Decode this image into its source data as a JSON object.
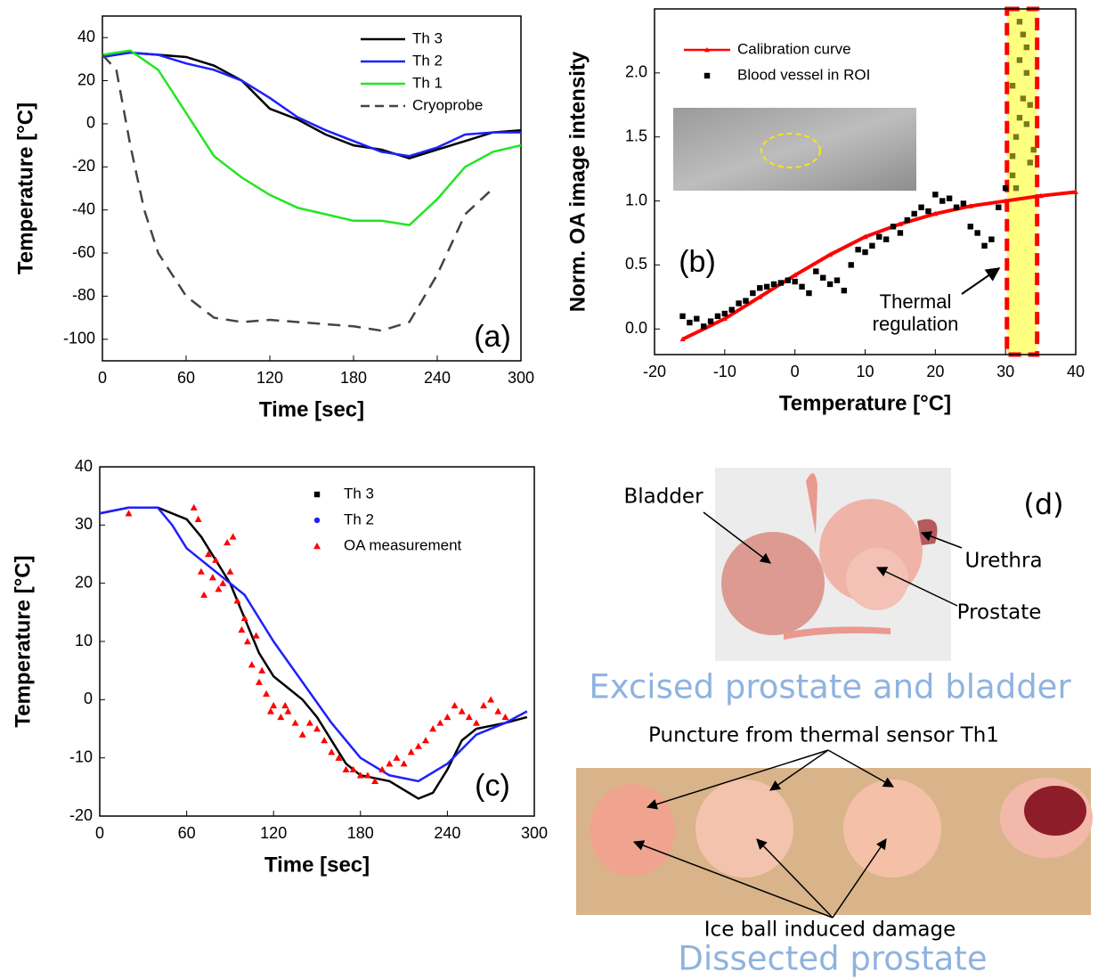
{
  "chart_data": [
    {
      "type": "line",
      "panel_label": "(a)",
      "xlabel": "Time [sec]",
      "ylabel": "Temperature [°C]",
      "xlim": [
        0,
        300
      ],
      "ylim": [
        -110,
        50
      ],
      "xticks": [
        0,
        60,
        120,
        180,
        240,
        300
      ],
      "yticks": [
        -100,
        -80,
        -60,
        -40,
        -20,
        0,
        20,
        40
      ],
      "legend": "upper right",
      "series": [
        {
          "name": "Th 3",
          "color": "#000000",
          "mode": "line",
          "x": [
            0,
            20,
            40,
            60,
            80,
            100,
            120,
            140,
            160,
            180,
            200,
            220,
            240,
            260,
            280,
            300
          ],
          "values": [
            32,
            33,
            32,
            31,
            27,
            20,
            7,
            2,
            -5,
            -10,
            -12,
            -16,
            -12,
            -8,
            -4,
            -3
          ]
        },
        {
          "name": "Th 2",
          "color": "#1f1fff",
          "mode": "line",
          "x": [
            0,
            20,
            40,
            60,
            80,
            100,
            120,
            140,
            160,
            180,
            200,
            220,
            240,
            260,
            280,
            300
          ],
          "values": [
            31,
            33,
            32,
            28,
            25,
            20,
            12,
            3,
            -3,
            -8,
            -13,
            -15,
            -11,
            -5,
            -4,
            -4
          ]
        },
        {
          "name": "Th 1",
          "color": "#22e622",
          "mode": "line",
          "x": [
            0,
            20,
            40,
            60,
            80,
            100,
            120,
            140,
            160,
            180,
            200,
            220,
            240,
            260,
            280,
            300
          ],
          "values": [
            32,
            34,
            25,
            5,
            -15,
            -25,
            -33,
            -39,
            -42,
            -45,
            -45,
            -47,
            -35,
            -20,
            -13,
            -10
          ]
        },
        {
          "name": "Cryoprobe",
          "color": "#444444",
          "mode": "line",
          "dash": true,
          "x": [
            0,
            10,
            20,
            30,
            40,
            60,
            80,
            100,
            120,
            140,
            160,
            180,
            200,
            220,
            240,
            260,
            280
          ],
          "values": [
            32,
            25,
            -10,
            -40,
            -60,
            -80,
            -90,
            -92,
            -91,
            -92,
            -93,
            -94,
            -96,
            -92,
            -70,
            -42,
            -30
          ]
        }
      ]
    },
    {
      "type": "scatter",
      "panel_label": "(b)",
      "xlabel": "Temperature [°C]",
      "ylabel": "Norm. OA image intensity",
      "annotation": [
        "Thermal",
        "regulation"
      ],
      "xlim": [
        -20,
        40
      ],
      "ylim": [
        -0.2,
        2.5
      ],
      "xticks": [
        -20,
        -10,
        0,
        10,
        20,
        30,
        40
      ],
      "yticks": [
        {
          "value": 0,
          "label": "0.0"
        },
        0.5,
        {
          "value": 1,
          "label": "1.0"
        },
        1.5,
        {
          "value": 2,
          "label": "2.0"
        }
      ],
      "legend": "upper left",
      "highlight_xrange": [
        30.2,
        34.5
      ],
      "highlight_color": "#ffff80",
      "highlight_border": "#ff0000",
      "highlight_point_color": "#7a7a1a",
      "series": [
        {
          "name": "Calibration curve",
          "color": "#ff0000",
          "mode": "line",
          "marker": "triangle",
          "x": [
            -16,
            -10,
            -5,
            0,
            5,
            10,
            15,
            20,
            25,
            30,
            35,
            40
          ],
          "values": [
            -0.08,
            0.08,
            0.25,
            0.42,
            0.58,
            0.72,
            0.82,
            0.9,
            0.96,
            1.0,
            1.04,
            1.07
          ]
        },
        {
          "name": "Blood vessel in ROI",
          "color": "#000000",
          "mode": "scatter",
          "marker": "square",
          "x": [
            -16,
            -15,
            -14,
            -13,
            -12,
            -11,
            -10,
            -9,
            -8,
            -7,
            -6,
            -5,
            -4,
            -3,
            -2,
            -1,
            0,
            1,
            2,
            3,
            4,
            5,
            6,
            7,
            8,
            9,
            10,
            11,
            12,
            13,
            14,
            15,
            16,
            17,
            18,
            19,
            20,
            21,
            22,
            23,
            24,
            25,
            26,
            27,
            28,
            29,
            30,
            31,
            31.5,
            32,
            32.5,
            33,
            33.5,
            31,
            32,
            33,
            34,
            31.5,
            32.5,
            33.5,
            31,
            32,
            33
          ],
          "values": [
            0.1,
            0.05,
            0.08,
            0.02,
            0.06,
            0.1,
            0.12,
            0.15,
            0.2,
            0.22,
            0.28,
            0.32,
            0.33,
            0.35,
            0.36,
            0.38,
            0.37,
            0.33,
            0.28,
            0.45,
            0.4,
            0.35,
            0.38,
            0.3,
            0.5,
            0.62,
            0.6,
            0.65,
            0.72,
            0.7,
            0.8,
            0.75,
            0.85,
            0.9,
            0.95,
            0.92,
            1.05,
            1.0,
            1.02,
            0.95,
            0.98,
            0.8,
            0.75,
            0.65,
            0.7,
            0.95,
            1.1,
            1.2,
            1.5,
            2.4,
            1.8,
            2.2,
            1.3,
            1.9,
            2.1,
            1.6,
            1.4,
            1.1,
            2.3,
            1.75,
            1.35,
            1.65,
            2.0
          ]
        }
      ]
    },
    {
      "type": "line",
      "panel_label": "(c)",
      "xlabel": "Time [sec]",
      "ylabel": "Temperature [°C]",
      "xlim": [
        0,
        300
      ],
      "ylim": [
        -20,
        40
      ],
      "xticks": [
        0,
        60,
        120,
        180,
        240,
        300
      ],
      "yticks": [
        -20,
        -10,
        0,
        10,
        20,
        30,
        40
      ],
      "legend": "upper right",
      "series": [
        {
          "name": "Th 3",
          "color": "#000000",
          "mode": "line",
          "marker": "square",
          "x": [
            0,
            20,
            40,
            60,
            70,
            80,
            90,
            100,
            110,
            120,
            130,
            140,
            150,
            160,
            170,
            180,
            200,
            220,
            230,
            240,
            250,
            260,
            280,
            295
          ],
          "values": [
            32,
            33,
            33,
            31,
            28,
            24,
            20,
            14,
            8,
            4,
            2,
            0,
            -3,
            -7,
            -11,
            -13,
            -14,
            -17,
            -16,
            -12,
            -7,
            -5,
            -4,
            -3
          ]
        },
        {
          "name": "Th 2",
          "color": "#1f1fff",
          "mode": "line",
          "marker": "circle",
          "x": [
            0,
            20,
            40,
            50,
            60,
            80,
            100,
            120,
            140,
            160,
            180,
            200,
            220,
            240,
            260,
            280,
            295
          ],
          "values": [
            32,
            33,
            33,
            30,
            26,
            22,
            18,
            10,
            3,
            -4,
            -10,
            -13,
            -14,
            -11,
            -6,
            -4,
            -2
          ]
        },
        {
          "name": "OA measurement",
          "color": "#ff0000",
          "mode": "scatter",
          "marker": "triangle",
          "x": [
            20,
            65,
            68,
            70,
            72,
            75,
            78,
            80,
            82,
            85,
            88,
            90,
            92,
            95,
            98,
            100,
            102,
            105,
            108,
            110,
            112,
            115,
            118,
            120,
            125,
            128,
            130,
            135,
            140,
            145,
            150,
            155,
            160,
            165,
            170,
            175,
            180,
            185,
            190,
            195,
            200,
            205,
            210,
            215,
            220,
            225,
            230,
            235,
            240,
            245,
            250,
            255,
            260,
            265,
            270,
            275,
            280
          ],
          "values": [
            32,
            33,
            31,
            22,
            18,
            25,
            21,
            24,
            19,
            20,
            27,
            22,
            28,
            17,
            12,
            14,
            10,
            6,
            11,
            3,
            5,
            1,
            -2,
            -1,
            -3,
            -1,
            -2,
            -4,
            -6,
            -4,
            -5,
            -7,
            -9,
            -10,
            -12,
            -12,
            -13,
            -13,
            -14,
            -12,
            -11,
            -10,
            -11,
            -9,
            -8,
            -7,
            -5,
            -4,
            -3,
            -1,
            -2,
            -3,
            -4,
            -1,
            0,
            -2,
            -3
          ]
        }
      ]
    }
  ],
  "photo_panel": {
    "panel_label": "(d)",
    "labels": [
      "Bladder",
      "Urethra",
      "Prostate"
    ],
    "caption_top": "Excised prostate and bladder",
    "puncture_label": "Puncture from thermal sensor Th1",
    "damage_label": "Ice ball induced damage",
    "caption_bottom": "Dissected prostate"
  }
}
